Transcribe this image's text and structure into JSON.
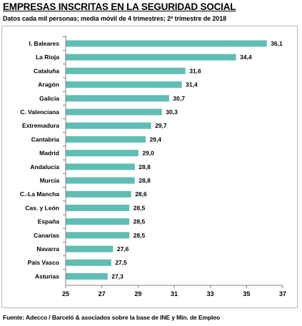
{
  "header": {
    "title": "EMPRESAS INSCRITAS EN LA SEGURIDAD SOCIAL",
    "subtitle": "Datos cada mil personas; media móvil de 4 trimestres; 2º trimestre de 2018"
  },
  "footer": {
    "source": "Fuente: Adecco / Barceló & asociados sobre la base de INE y Min. de Empleo"
  },
  "chart_data": {
    "type": "bar",
    "orientation": "horizontal",
    "title": "EMPRESAS INSCRITAS EN LA SEGURIDAD SOCIAL",
    "subtitle": "Datos cada mil personas; media móvil de 4 trimestres; 2º trimestre de 2018",
    "categories": [
      "I. Baleares",
      "La Rioja",
      "Cataluña",
      "Aragón",
      "Galicia",
      "C. Valenciana",
      "Extremadura",
      "Cantabria",
      "Madrid",
      "Andalucía",
      "Murcia",
      "C.-La Mancha",
      "Cas. y León",
      "España",
      "Canarias",
      "Navarra",
      "País Vasco",
      "Asturias"
    ],
    "values": [
      36.1,
      34.4,
      31.6,
      31.4,
      30.7,
      30.3,
      29.7,
      29.4,
      29.0,
      28.8,
      28.8,
      28.6,
      28.5,
      28.5,
      28.5,
      27.6,
      27.5,
      27.3
    ],
    "value_labels": [
      "36,1",
      "34,4",
      "31,6",
      "31,4",
      "30,7",
      "30,3",
      "29,7",
      "29,4",
      "29,0",
      "28,8",
      "28,8",
      "28,6",
      "28,5",
      "28,5",
      "28,5",
      "27,6",
      "27,5",
      "27,3"
    ],
    "xlim": [
      25,
      37
    ],
    "xticks": [
      25,
      27,
      29,
      31,
      33,
      35,
      37
    ],
    "bar_color": "#5fbdb4",
    "grid": false,
    "legend": "none"
  }
}
